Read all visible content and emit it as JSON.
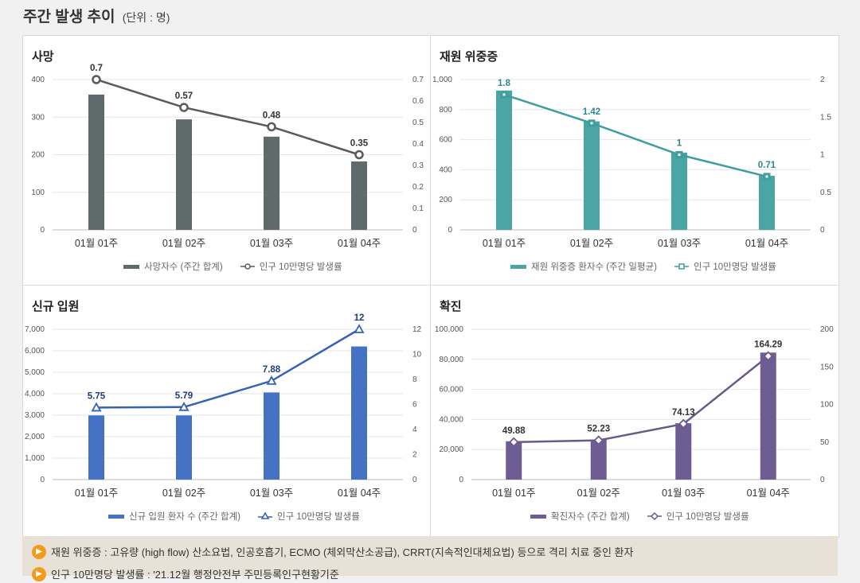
{
  "header": {
    "title": "주간 발생 추이",
    "unit": "(단위 : 명)"
  },
  "legend_rate_label": "인구 10만명당 발생률",
  "notes": [
    "재원 위중증 : 고유량 (high flow) 산소요법, 인공호흡기, ECMO (체외막산소공급), CRRT(지속적인대체요법) 등으로 격리 치료 중인 환자",
    "인구 10만명당 발생률 : '21.12월 행정안전부 주민등록인구현황기준"
  ],
  "chart_data": [
    {
      "type": "bar",
      "title": "사망",
      "categories": [
        "01월 01주",
        "01월 02주",
        "01월 03주",
        "01월 04주"
      ],
      "bar_series": {
        "name": "사망자수 (주간 합계)",
        "values": [
          360,
          294,
          248,
          182
        ],
        "color": "#5f6b6b"
      },
      "line_series": {
        "name": "인구 10만명당 발생률",
        "values": [
          0.7,
          0.57,
          0.48,
          0.35
        ],
        "color": "#5a5a5a",
        "marker": "circle"
      },
      "y_left": {
        "ticks": [
          "400",
          "300",
          "200",
          "100",
          "0"
        ],
        "max": 400
      },
      "y_right": {
        "ticks": [
          "0.7",
          "0.6",
          "0.5",
          "0.4",
          "0.3",
          "0.2",
          "0.1",
          "0"
        ],
        "max": 0.7
      },
      "label_color": "#333333"
    },
    {
      "type": "bar",
      "title": "재원 위중증",
      "categories": [
        "01월 01주",
        "01월 02주",
        "01월 03주",
        "01월 04주"
      ],
      "bar_series": {
        "name": "재원 위중증 환자수 (주간 일평균)",
        "values": [
          927,
          722,
          514,
          360
        ],
        "color": "#4aa5a5"
      },
      "line_series": {
        "name": "인구 10만명당 발생률",
        "values": [
          1.8,
          1.42,
          1,
          0.71
        ],
        "color": "#3f9d9d",
        "marker": "square"
      },
      "y_left": {
        "ticks": [
          "1,000",
          "800",
          "600",
          "400",
          "200",
          "0"
        ],
        "max": 1000
      },
      "y_right": {
        "ticks": [
          "2",
          "1.5",
          "1",
          "0.5",
          "0"
        ],
        "max": 2
      },
      "label_color": "#2e8b8b"
    },
    {
      "type": "bar",
      "title": "신규 입원",
      "categories": [
        "01월 01주",
        "01월 02주",
        "01월 03주",
        "01월 04주"
      ],
      "bar_series": {
        "name": "신규 입원 환자 수 (주간 합계)",
        "values": [
          2990,
          2990,
          4060,
          6200
        ],
        "color": "#4472c4"
      },
      "line_series": {
        "name": "인구 10만명당 발생률",
        "values": [
          5.75,
          5.79,
          7.88,
          12
        ],
        "color": "#3562b5",
        "marker": "triangle"
      },
      "y_left": {
        "ticks": [
          "7,000",
          "6,000",
          "5,000",
          "4,000",
          "3,000",
          "2,000",
          "1,000",
          "0"
        ],
        "max": 7000
      },
      "y_right": {
        "ticks": [
          "12",
          "10",
          "8",
          "6",
          "4",
          "2",
          "0"
        ],
        "max": 12
      },
      "label_color": "#1f3d7a"
    },
    {
      "type": "bar",
      "title": "확진",
      "categories": [
        "01월 01주",
        "01월 02주",
        "01월 03주",
        "01월 04주"
      ],
      "bar_series": {
        "name": "확진자수 (주간 합계)",
        "values": [
          25500,
          26500,
          37500,
          84500
        ],
        "color": "#6e5d93"
      },
      "line_series": {
        "name": "인구 10만명당 발생률",
        "values": [
          49.88,
          52.23,
          74.13,
          164.29
        ],
        "color": "#6a5a8c",
        "marker": "diamond"
      },
      "y_left": {
        "ticks": [
          "100,000",
          "80,000",
          "60,000",
          "40,000",
          "20,000",
          "0"
        ],
        "max": 100000
      },
      "y_right": {
        "ticks": [
          "200",
          "150",
          "100",
          "50",
          "0"
        ],
        "max": 200
      },
      "label_color": "#333333"
    }
  ]
}
